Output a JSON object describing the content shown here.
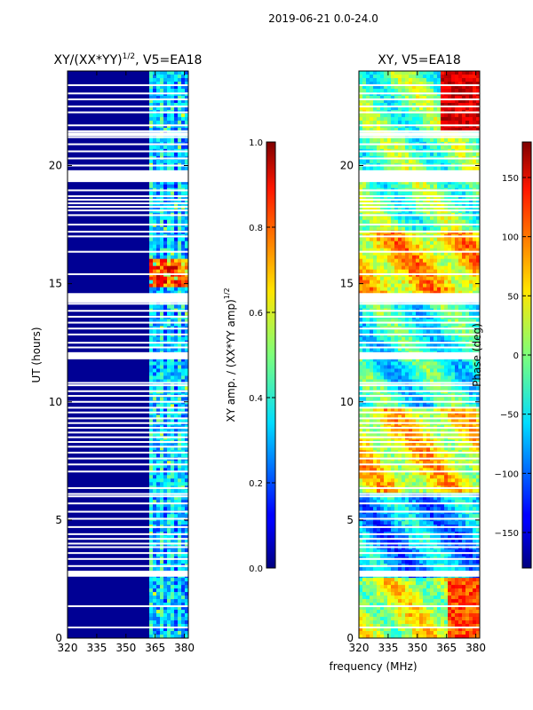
{
  "figure_title": "2019-06-21 0.0-24.0",
  "chart_data": [
    {
      "type": "heatmap",
      "title": "XY/(XX*YY)",
      "title_exponent": "1/2",
      "title_suffix": ", V5=EA18",
      "xlabel": "",
      "ylabel": "UT (hours)",
      "xlim": [
        320,
        382
      ],
      "ylim": [
        0,
        24
      ],
      "x_ticks": [
        "320",
        "335",
        "350",
        "365",
        "380"
      ],
      "x_tick_values": [
        320,
        335,
        350,
        365,
        380
      ],
      "y_ticks": [
        "0",
        "5",
        "10",
        "15",
        "20"
      ],
      "y_tick_values": [
        0,
        5,
        10,
        15,
        20
      ],
      "quantity": "normalized XY amplitude",
      "background_level": 0.02,
      "bright_band_mhz": [
        362,
        381
      ],
      "strong_feature_hours": [
        14.8,
        16.0
      ],
      "colorbar": {
        "label": "XY amp. / (XX*YY amp)",
        "label_exponent": "1/2",
        "range": [
          0.0,
          1.0
        ],
        "ticks": [
          "0.0",
          "0.2",
          "0.4",
          "0.6",
          "0.8",
          "1.0"
        ],
        "tick_values": [
          0.0,
          0.2,
          0.4,
          0.6,
          0.8,
          1.0
        ]
      }
    },
    {
      "type": "heatmap",
      "title": "XY, V5=EA18",
      "xlabel": "frequency (MHz)",
      "ylabel": "",
      "xlim": [
        320,
        382
      ],
      "ylim": [
        0,
        24
      ],
      "x_ticks": [
        "320",
        "335",
        "350",
        "365",
        "380"
      ],
      "x_tick_values": [
        320,
        335,
        350,
        365,
        380
      ],
      "y_ticks": [
        "0",
        "5",
        "10",
        "15",
        "20"
      ],
      "y_tick_values": [
        0,
        5,
        10,
        15,
        20
      ],
      "quantity": "XY phase",
      "colorbar": {
        "label": "Phase (deg)",
        "range": [
          -180,
          180
        ],
        "ticks": [
          "−150",
          "−100",
          "−50",
          "0",
          "50",
          "100",
          "150"
        ],
        "tick_values": [
          -150,
          -100,
          -50,
          0,
          50,
          100,
          150
        ]
      }
    }
  ],
  "flagged_hours": [
    0.45,
    1.35,
    2.65,
    2.75,
    3.05,
    3.35,
    3.6,
    3.85,
    4.0,
    4.2,
    4.4,
    4.7,
    5.05,
    5.35,
    5.7,
    6.0,
    6.1,
    6.35,
    7.05,
    7.35,
    7.6,
    7.85,
    8.1,
    8.3,
    8.5,
    8.7,
    8.9,
    9.1,
    9.3,
    9.55,
    9.75,
    10.0,
    10.25,
    10.45,
    10.7,
    10.8,
    11.85,
    11.95,
    12.05,
    12.3,
    12.5,
    12.85,
    13.1,
    13.35,
    13.6,
    13.85,
    14.15,
    14.3,
    14.4,
    14.55,
    15.4,
    16.35,
    17.0,
    17.2,
    17.5,
    17.9,
    18.1,
    18.25,
    18.4,
    18.55,
    18.7,
    18.95,
    19.35,
    19.45,
    19.55,
    19.65,
    20.0,
    20.3,
    20.6,
    20.9,
    21.2,
    21.45,
    21.7,
    22.25,
    22.5,
    22.8,
    23.05,
    23.4
  ]
}
